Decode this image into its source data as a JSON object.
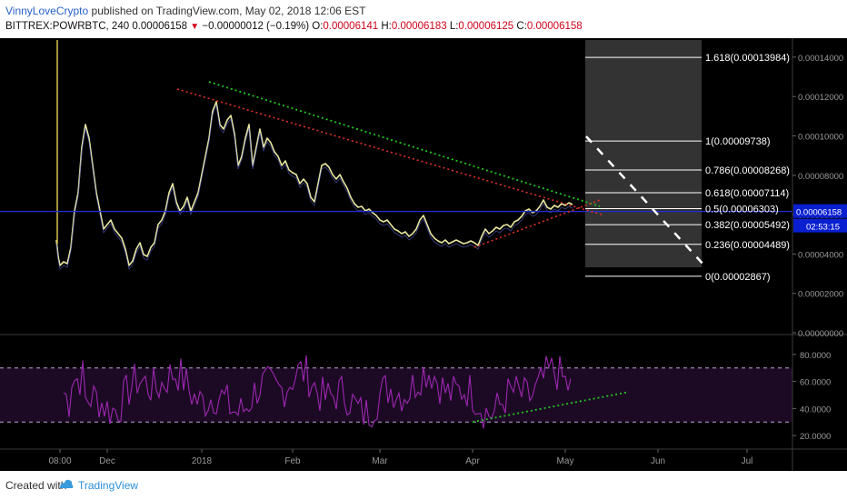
{
  "header": {
    "author": "VinnyLoveCrypto",
    "published": "published on TradingView.com, May 02, 2018 12:06 EST",
    "symbol": "BITTREX:POWRBTC, 240",
    "last": "0.00006158",
    "change": "−0.00000012 (−0.19%)",
    "o_label": "O:",
    "o": "0.00006141",
    "h_label": "H:",
    "h": "0.00006183",
    "l_label": "L:",
    "l": "0.00006125",
    "c_label": "C:",
    "c": "0.00006158"
  },
  "footer": {
    "created": "Created with",
    "brand": "TradingView"
  },
  "colors": {
    "background": "#000000",
    "price_line": "#e8e6a0",
    "rsi_line": "#9c27b0",
    "green_trend": "#22c522",
    "red_trend": "#e0322a",
    "horizontal": "#1e2cd6",
    "fib": "#ffffff",
    "last_label_bg": "#0a1fd0"
  },
  "chart_data": [
    {
      "type": "line",
      "series": [
        {
          "name": "",
          "values": []
        }
      ],
      "x_ticks": [
        "08:00",
        "Dec",
        "2018",
        "Feb",
        "Mar",
        "Apr",
        "May",
        "Jun",
        "Jul"
      ],
      "y_ticks": [
        "0.00014000",
        "0.00012000",
        "0.00010000",
        "0.00008000",
        "0.00006000",
        "0.00004000",
        "0.00002000",
        "0.00000000"
      ],
      "ylim": [
        0,
        0.000145
      ],
      "last_value_label": "0.00006158",
      "countdown_label": "02:53:15",
      "horizontal_level": 6.158e-05,
      "fibonacci": [
        {
          "label": "1.618(0.00013984)",
          "value": 0.00013984
        },
        {
          "label": "1(0.00009738)",
          "value": 9.738e-05
        },
        {
          "label": "0.786(0.00008268)",
          "value": 8.268e-05
        },
        {
          "label": "0.618(0.00007114)",
          "value": 7.114e-05
        },
        {
          "label": "0.5(0.00006303)",
          "value": 6.303e-05
        },
        {
          "label": "0.382(0.00005492)",
          "value": 5.492e-05
        },
        {
          "label": "0.236(0.00004489)",
          "value": 4.489e-05
        },
        {
          "label": "0(0.00002867)",
          "value": 2.867e-05
        }
      ],
      "grid": false
    },
    {
      "type": "line",
      "series": [
        {
          "name": "",
          "values": []
        }
      ],
      "y_ticks": [
        "80.0000",
        "60.0000",
        "40.0000",
        "20.0000"
      ],
      "ylim": [
        10,
        92
      ],
      "bands": [
        30,
        70
      ],
      "grid": false
    }
  ]
}
